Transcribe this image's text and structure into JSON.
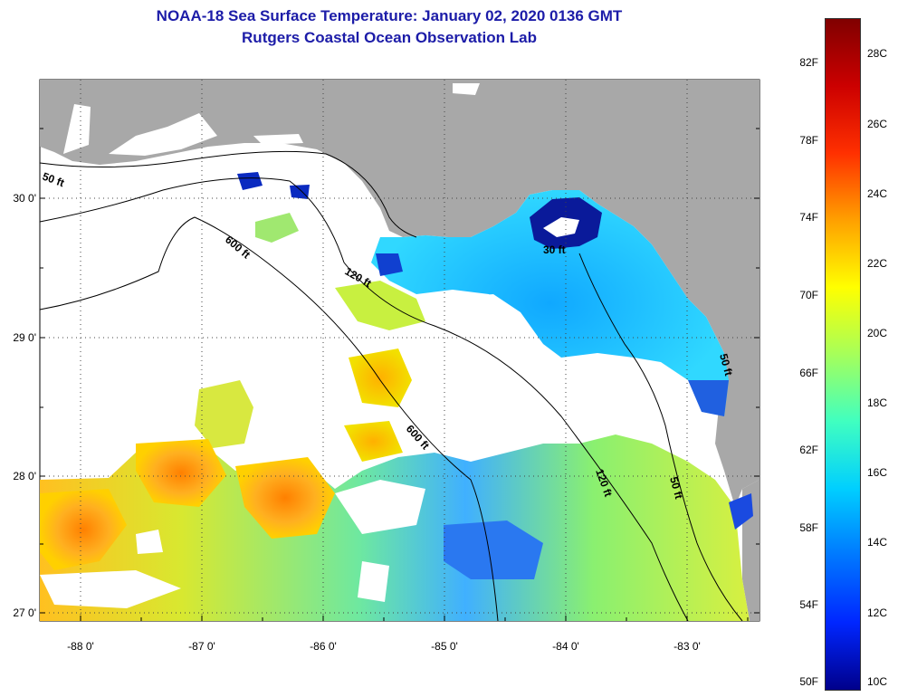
{
  "title": {
    "line1": "NOAA-18 Sea Surface Temperature:  January 02, 2020 0136 GMT",
    "line2": "Rutgers Coastal Ocean Observation Lab"
  },
  "axes": {
    "lon_ticks": [
      "-88 0'",
      "-87 0'",
      "-86 0'",
      "-85 0'",
      "-84 0'",
      "-83 0'"
    ],
    "lat_ticks": [
      "30 0'",
      "29 0'",
      "28 0'",
      "27 0'"
    ]
  },
  "contours": {
    "l50": "50 ft",
    "l600a": "600 ft",
    "l120a": "120 ft",
    "l30": "30 ft",
    "l600b": "600 ft",
    "l120b": "120 ft",
    "l50b": "50 ft",
    "l50c": "50 ft"
  },
  "colorbar": {
    "fahrenheit": [
      "82F",
      "78F",
      "74F",
      "70F",
      "66F",
      "62F",
      "58F",
      "54F",
      "50F"
    ],
    "celsius": [
      "28C",
      "26C",
      "24C",
      "22C",
      "20C",
      "18C",
      "16C",
      "14C",
      "12C",
      "10C"
    ],
    "colors": {
      "c10": "#00008b",
      "c12": "#0026ff",
      "c14": "#0078ff",
      "c16": "#00cfff",
      "c18": "#40ffc0",
      "c20": "#a6ff5a",
      "c22": "#ffff00",
      "c24": "#ffa000",
      "c26": "#ff3000",
      "c28": "#cc0000",
      "c30": "#800000"
    }
  },
  "colors": {
    "land": "#a8a8a8",
    "nodata": "#ffffff",
    "title": "#1c1ca8"
  }
}
